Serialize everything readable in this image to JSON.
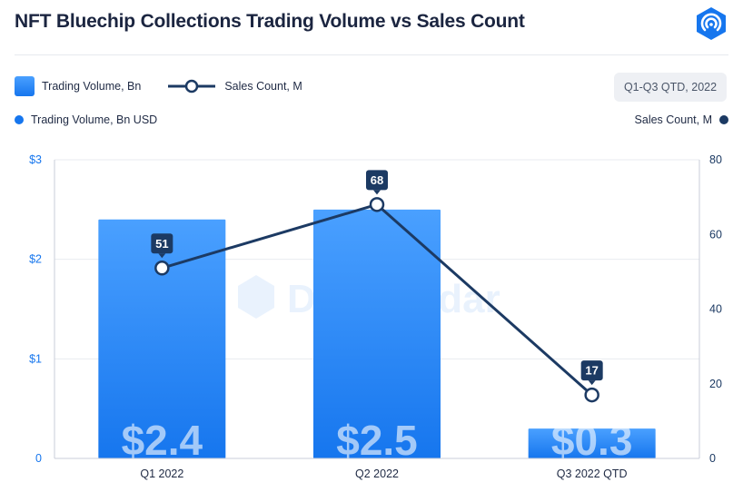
{
  "title": "NFT Bluechip Collections Trading Volume vs Sales Count",
  "logo_icon": "dappradar-logo-icon",
  "watermark": "DappRadar",
  "legend": {
    "bar_label": "Trading Volume, Bn",
    "line_label": "Sales Count, M"
  },
  "period_badge": "Q1-Q3 QTD, 2022",
  "axis_legend": {
    "left": "Trading Volume, Bn USD",
    "right": "Sales Count, M"
  },
  "colors": {
    "bar_top": "#4aa0ff",
    "bar_bottom": "#1676ee",
    "line": "#1c3a63",
    "grid": "#e8ebf0"
  },
  "chart_data": {
    "type": "bar",
    "categories": [
      "Q1 2022",
      "Q2 2022",
      "Q3 2022 QTD"
    ],
    "series": [
      {
        "name": "Trading Volume, Bn",
        "type": "bar",
        "axis": "left",
        "values": [
          2.4,
          2.5,
          0.3
        ],
        "labels": [
          "$2.4",
          "$2.5",
          "$0.3"
        ]
      },
      {
        "name": "Sales Count, M",
        "type": "line",
        "axis": "right",
        "values": [
          51,
          68,
          17
        ],
        "labels": [
          "51",
          "68",
          "17"
        ]
      }
    ],
    "y_left": {
      "ylim": [
        0,
        3
      ],
      "ticks": [
        0,
        1,
        2,
        3
      ],
      "tick_labels": [
        "0",
        "$1",
        "$2",
        "$3"
      ]
    },
    "y_right": {
      "ylim": [
        0,
        80
      ],
      "ticks": [
        0,
        20,
        40,
        60,
        80
      ],
      "tick_labels": [
        "0",
        "20",
        "40",
        "60",
        "80"
      ]
    },
    "grid": true
  }
}
